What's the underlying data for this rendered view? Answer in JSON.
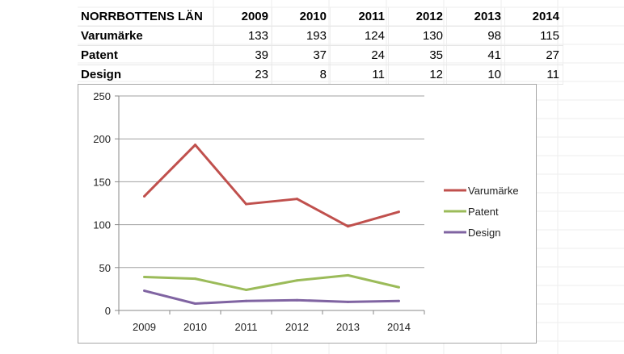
{
  "table": {
    "header": "NORRBOTTENS LÄN",
    "years": [
      "2009",
      "2010",
      "2011",
      "2012",
      "2013",
      "2014"
    ],
    "rows": [
      {
        "label": "Varumärke",
        "values": [
          "133",
          "193",
          "124",
          "130",
          "98",
          "115"
        ]
      },
      {
        "label": "Patent",
        "values": [
          "39",
          "37",
          "24",
          "35",
          "41",
          "27"
        ]
      },
      {
        "label": "Design",
        "values": [
          "23",
          "8",
          "11",
          "12",
          "10",
          "11"
        ]
      }
    ]
  },
  "chart_data": {
    "type": "line",
    "categories": [
      "2009",
      "2010",
      "2011",
      "2012",
      "2013",
      "2014"
    ],
    "series": [
      {
        "name": "Varumärke",
        "values": [
          133,
          193,
          124,
          130,
          98,
          115
        ],
        "color": "#c0504d"
      },
      {
        "name": "Patent",
        "values": [
          39,
          37,
          24,
          35,
          41,
          27
        ],
        "color": "#9bbb59"
      },
      {
        "name": "Design",
        "values": [
          23,
          8,
          11,
          12,
          10,
          11
        ],
        "color": "#8064a2"
      }
    ],
    "ylim": [
      0,
      250
    ],
    "yticks": [
      "0",
      "50",
      "100",
      "150",
      "200",
      "250"
    ],
    "grid": true,
    "legend": "right"
  }
}
